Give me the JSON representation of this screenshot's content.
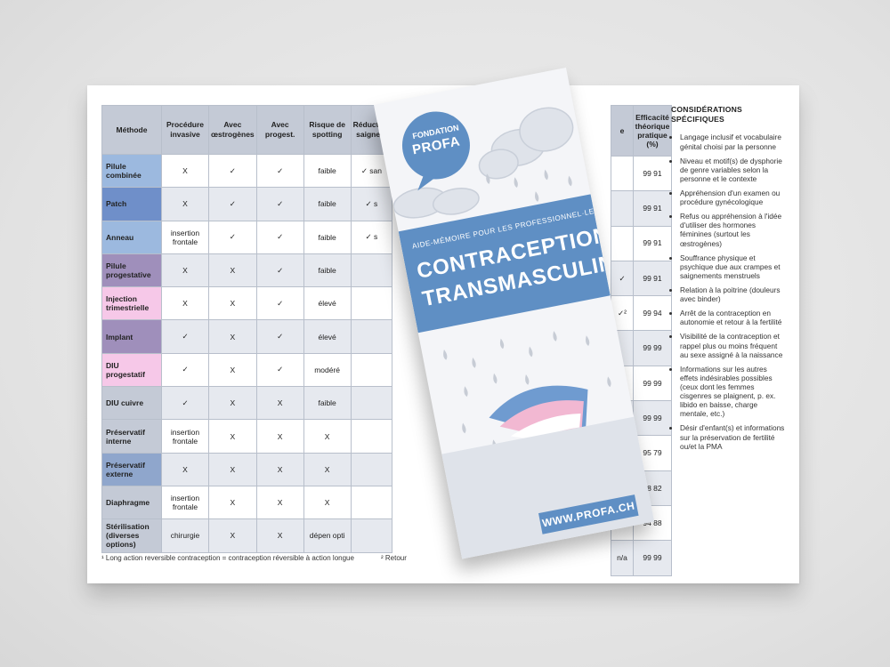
{
  "table": {
    "headers": [
      "Méthode",
      "Procédure invasive",
      "Avec œstrogènes",
      "Avec progest.",
      "Risque de spotting",
      "Réduction saignem"
    ],
    "rows": [
      {
        "method": "Pilule combinée",
        "c1": "X",
        "c2": "✓",
        "c3": "✓",
        "c4": "faible",
        "c5": "✓ san"
      },
      {
        "method": "Patch",
        "c1": "X",
        "c2": "✓",
        "c3": "✓",
        "c4": "faible",
        "c5": "✓ s"
      },
      {
        "method": "Anneau",
        "c1": "insertion frontale",
        "c2": "✓",
        "c3": "✓",
        "c4": "faible",
        "c5": "✓ s"
      },
      {
        "method": "Pilule progestative",
        "c1": "X",
        "c2": "X",
        "c3": "✓",
        "c4": "faible",
        "c5": ""
      },
      {
        "method": "Injection trimestrielle",
        "c1": "X",
        "c2": "X",
        "c3": "✓",
        "c4": "élevé",
        "c5": ""
      },
      {
        "method": "Implant",
        "c1": "✓",
        "c2": "X",
        "c3": "✓",
        "c4": "élevé",
        "c5": ""
      },
      {
        "method": "DIU progestatif",
        "c1": "✓",
        "c2": "X",
        "c3": "✓",
        "c4": "modéré",
        "c5": ""
      },
      {
        "method": "DIU cuivre",
        "c1": "✓",
        "c2": "X",
        "c3": "X",
        "c4": "faible",
        "c5": ""
      },
      {
        "method": "Préservatif interne",
        "c1": "insertion frontale",
        "c2": "X",
        "c3": "X",
        "c4": "X",
        "c5": ""
      },
      {
        "method": "Préservatif externe",
        "c1": "X",
        "c2": "X",
        "c3": "X",
        "c4": "X",
        "c5": ""
      },
      {
        "method": "Diaphragme",
        "c1": "insertion frontale",
        "c2": "X",
        "c3": "X",
        "c4": "X",
        "c5": ""
      },
      {
        "method": "Stérilisation (diverses options)",
        "c1": "chirurgie",
        "c2": "X",
        "c3": "X",
        "c4": "dépen opti",
        "c5": ""
      }
    ],
    "right_headers": [
      "e",
      "Efficacité théorique pratique (%)"
    ],
    "right_rows": [
      {
        "a": "",
        "b": "99 91"
      },
      {
        "a": "",
        "b": "99 91"
      },
      {
        "a": "",
        "b": "99 91"
      },
      {
        "a": "✓",
        "b": "99 91"
      },
      {
        "a": "✓²",
        "b": "99 94"
      },
      {
        "a": "",
        "b": "99 99"
      },
      {
        "a": "✓",
        "b": "99 99"
      },
      {
        "a": "",
        "b": "99 99"
      },
      {
        "a": "",
        "b": "95 79"
      },
      {
        "a": "",
        "b": "98 82"
      },
      {
        "a": "",
        "b": "94 88"
      },
      {
        "a": "n/a",
        "b": "99 99"
      }
    ],
    "footnote": "¹ Long action reversible contraception = contraception réversible à action longue",
    "footnote2": "² Retour"
  },
  "considerations": {
    "title": "CONSIDÉRATIONS SPÉCIFIQUES",
    "items": [
      "Langage inclusif et vocabulaire génital choisi par la personne",
      "Niveau et motif(s) de dysphorie de genre variables selon la personne et le contexte",
      "Appréhension d'un examen ou procédure gynécologique",
      "Refus ou appréhension à l'idée d'utiliser des hormones féminines (surtout les œstrogènes)",
      "Souffrance physique et psychique due aux crampes et saignements menstruels",
      "Relation à la poitrine (douleurs avec binder)",
      "Arrêt de la contraception en autonomie et retour à la fertilité",
      "Visibilité de la contraception et rappel plus ou moins fréquent au sexe assigné à la naissance",
      "Informations sur les autres effets indésirables possibles (ceux dont les femmes cisgenres se plaignent, p. ex. libido en baisse, charge mentale, etc.)",
      "Désir d'enfant(s) et informations sur la préservation de fertilité ou/et la PMA"
    ]
  },
  "leaflet": {
    "logo_line1": "FONDATION",
    "logo_line2": "PROFA",
    "subtitle": "AIDE-MÉMOIRE POUR LES PROFESSIONNEL·LE·X·S",
    "title_line1": "CONTRACEPTION",
    "title_line2": "TRANSMASCULINE",
    "url": "WWW.PROFA.CH"
  },
  "colors": {
    "brand_blue": "#5f8fc4",
    "umbrella_blue": "#6f9bd0",
    "umbrella_pink": "#f2b8d2",
    "umbrella_white": "#ffffff"
  }
}
